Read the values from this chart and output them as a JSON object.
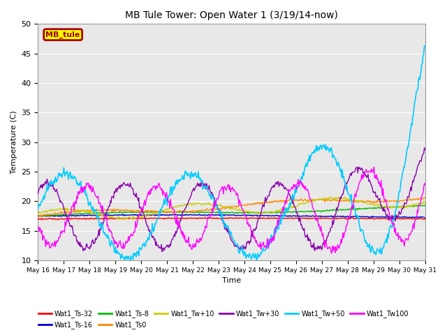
{
  "title": "MB Tule Tower: Open Water 1 (3/19/14-now)",
  "xlabel": "Time",
  "ylabel": "Temperature (C)",
  "ylim": [
    10,
    50
  ],
  "bg_color": "#e8e8e8",
  "series_colors": {
    "Wat1_Ts32": "#ff0000",
    "Wat1_Ts16": "#0000cc",
    "Wat1_Ts8": "#00bb00",
    "Wat1_Ts0": "#ff8800",
    "Wat1_Tw10": "#cccc00",
    "Wat1_Tw30": "#8800aa",
    "Wat1_Tw50": "#00ccff",
    "Wat1_Tw100": "#ff00ff"
  },
  "legend_box_label": "MB_tule",
  "legend_box_bg": "#ffff00",
  "legend_box_edge": "#aa0000",
  "legend_labels": [
    "Wat1_Ts-32",
    "Wat1_Ts-16",
    "Wat1_Ts-8",
    "Wat1_Ts0",
    "Wat1_Tw+10",
    "Wat1_Tw+30",
    "Wat1_Tw+50",
    "Wat1_Tw100"
  ],
  "x_tick_labels": [
    "May 16",
    "May 17",
    "May 18",
    "May 19",
    "May 20",
    "May 21",
    "May 22",
    "May 23",
    "May 24",
    "May 25",
    "May 26",
    "May 27",
    "May 28",
    "May 29",
    "May 30",
    "May 31"
  ]
}
